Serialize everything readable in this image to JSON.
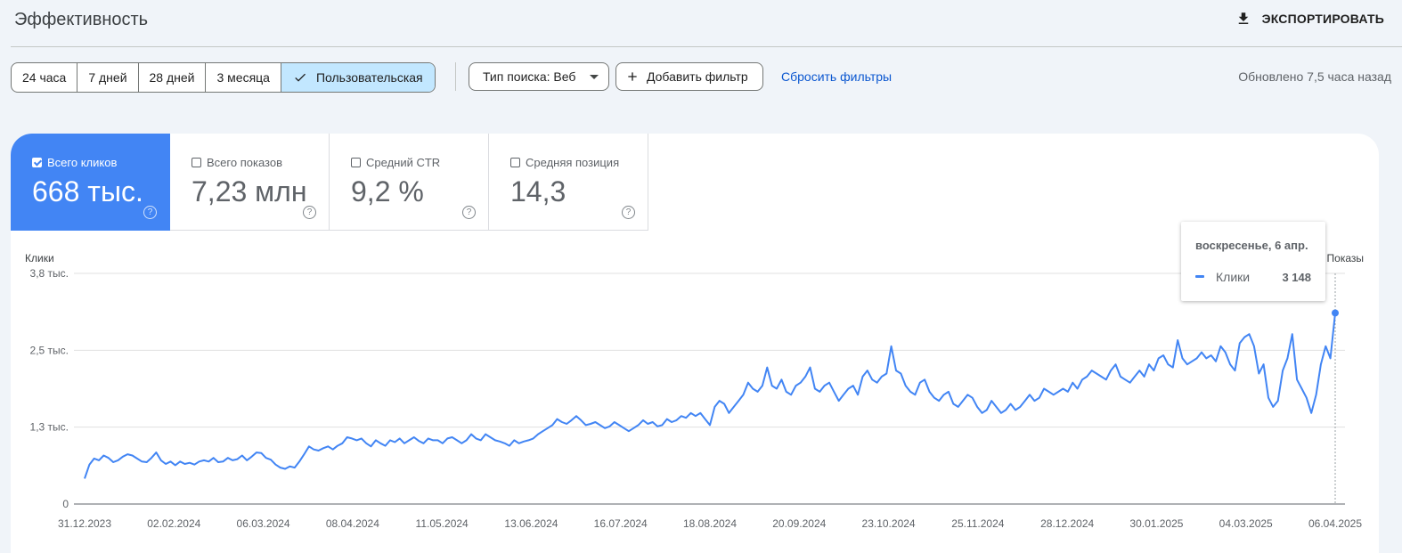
{
  "header": {
    "title": "Эффективность",
    "export_label": "ЭКСПОРТИРОВАТЬ"
  },
  "date_ranges": [
    {
      "label": "24 часа",
      "selected": false
    },
    {
      "label": "7 дней",
      "selected": false
    },
    {
      "label": "28 дней",
      "selected": false
    },
    {
      "label": "3 месяца",
      "selected": false
    },
    {
      "label": "Пользовательская",
      "selected": true
    }
  ],
  "filters": {
    "search_type": "Тип поиска: Веб",
    "add_filter": "Добавить фильтр",
    "reset": "Сбросить фильтры"
  },
  "updated": "Обновлено 7,5 часа назад",
  "metrics": [
    {
      "label": "Всего кликов",
      "value": "668 тыс.",
      "checked": true
    },
    {
      "label": "Всего показов",
      "value": "7,23 млн",
      "checked": false
    },
    {
      "label": "Средний CTR",
      "value": "9,2 %",
      "checked": false
    },
    {
      "label": "Средняя позиция",
      "value": "14,3",
      "checked": false
    }
  ],
  "help_glyph": "?",
  "tooltip": {
    "date": "воскресенье, 6 апр.",
    "series": "Клики",
    "value": "3 148"
  },
  "colors": {
    "accent": "#4285f4",
    "link": "#0b57d0",
    "selected_chip": "#c2e7ff"
  },
  "chart_data": {
    "type": "line",
    "ylabel": "Клики",
    "y2label": "Показы",
    "ylim": [
      0,
      3800
    ],
    "yticks": [
      {
        "v": 0,
        "label": "0"
      },
      {
        "v": 1267,
        "label": "1,3 тыс."
      },
      {
        "v": 2533,
        "label": "2,5 тыс."
      },
      {
        "v": 3800,
        "label": "3,8 тыс."
      }
    ],
    "xtick_labels": [
      "31.12.2023",
      "02.02.2024",
      "06.03.2024",
      "08.04.2024",
      "11.05.2024",
      "13.06.2024",
      "16.07.2024",
      "18.08.2024",
      "20.09.2024",
      "23.10.2024",
      "25.11.2024",
      "28.12.2024",
      "30.01.2025",
      "04.03.2025",
      "06.04.2025"
    ],
    "grid": true,
    "series": [
      {
        "name": "Клики",
        "x_start": "31.12.2023",
        "x_end": "06.04.2025",
        "values": [
          420,
          650,
          750,
          720,
          800,
          760,
          690,
          720,
          780,
          820,
          800,
          750,
          700,
          690,
          760,
          850,
          720,
          660,
          700,
          640,
          700,
          660,
          680,
          650,
          700,
          720,
          700,
          760,
          690,
          700,
          760,
          720,
          740,
          800,
          720,
          780,
          850,
          840,
          760,
          730,
          650,
          600,
          580,
          620,
          600,
          700,
          820,
          950,
          900,
          880,
          920,
          950,
          900,
          960,
          1000,
          1100,
          1080,
          1050,
          1080,
          1000,
          950,
          1050,
          1000,
          960,
          1050,
          1020,
          1080,
          1000,
          1050,
          1100,
          1040,
          1000,
          1080,
          1050,
          1050,
          1000,
          1080,
          1100,
          1050,
          1000,
          1050,
          1150,
          1080,
          1050,
          1150,
          1100,
          1050,
          1030,
          1000,
          960,
          1050,
          1000,
          1030,
          1050,
          1080,
          1150,
          1200,
          1250,
          1300,
          1400,
          1350,
          1320,
          1380,
          1450,
          1380,
          1300,
          1320,
          1350,
          1300,
          1250,
          1280,
          1350,
          1300,
          1250,
          1200,
          1250,
          1300,
          1380,
          1320,
          1350,
          1280,
          1300,
          1400,
          1350,
          1380,
          1450,
          1420,
          1500,
          1450,
          1500,
          1400,
          1300,
          1600,
          1700,
          1650,
          1500,
          1600,
          1700,
          1800,
          2000,
          1900,
          1850,
          1950,
          2250,
          1950,
          1900,
          2050,
          1850,
          1800,
          1950,
          2000,
          2100,
          2250,
          1900,
          1850,
          1950,
          2000,
          1850,
          1700,
          1800,
          1900,
          1950,
          1800,
          2100,
          2200,
          2050,
          2000,
          2100,
          2150,
          2600,
          2200,
          2150,
          1950,
          1850,
          1800,
          2000,
          2050,
          1850,
          1750,
          1700,
          1800,
          1850,
          1650,
          1600,
          1700,
          1800,
          1750,
          1600,
          1500,
          1550,
          1700,
          1600,
          1500,
          1550,
          1650,
          1550,
          1600,
          1700,
          1800,
          1700,
          1750,
          1900,
          1850,
          1800,
          1850,
          1900,
          1850,
          2000,
          1900,
          2050,
          2100,
          2200,
          2150,
          2100,
          2050,
          2200,
          2300,
          2100,
          2050,
          2000,
          2100,
          2200,
          2100,
          2300,
          2200,
          2400,
          2450,
          2300,
          2250,
          2700,
          2400,
          2300,
          2350,
          2400,
          2500,
          2400,
          2450,
          2350,
          2600,
          2500,
          2300,
          2200,
          2650,
          2750,
          2800,
          2600,
          2150,
          2300,
          1750,
          1600,
          1700,
          2200,
          2400,
          2800,
          2050,
          1900,
          1750,
          1500,
          1800,
          2300,
          2600,
          2400,
          3148
        ]
      }
    ]
  }
}
